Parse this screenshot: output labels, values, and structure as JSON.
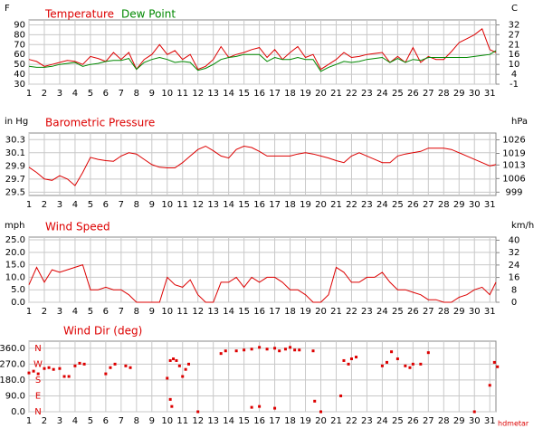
{
  "chart_data": [
    {
      "type": "line",
      "y_label": "F",
      "y2_label": "C",
      "x": [
        1,
        1.5,
        2,
        2.5,
        3,
        3.5,
        4,
        4.5,
        5,
        5.5,
        6,
        6.5,
        7,
        7.5,
        8,
        8.5,
        9,
        9.5,
        10,
        10.5,
        11,
        11.5,
        12,
        12.5,
        13,
        13.5,
        14,
        14.5,
        15,
        15.5,
        16,
        16.5,
        17,
        17.5,
        18,
        18.5,
        19,
        19.5,
        20,
        20.5,
        21,
        21.5,
        22,
        22.5,
        23,
        23.5,
        24,
        24.5,
        25,
        25.5,
        26,
        26.5,
        27,
        27.5,
        28,
        28.5,
        29,
        29.5,
        30,
        30.5,
        31,
        31.4
      ],
      "series": [
        {
          "name": "Temperature",
          "color": "#dd0000",
          "values": [
            55,
            53,
            48,
            50,
            52,
            54,
            53,
            50,
            58,
            56,
            53,
            62,
            55,
            62,
            45,
            55,
            60,
            70,
            60,
            64,
            55,
            60,
            45,
            48,
            55,
            68,
            57,
            60,
            62,
            65,
            67,
            57,
            65,
            55,
            62,
            68,
            57,
            60,
            45,
            50,
            55,
            62,
            57,
            58,
            60,
            61,
            62,
            52,
            58,
            52,
            67,
            52,
            58,
            55,
            55,
            63,
            72,
            76,
            80,
            86,
            65,
            62
          ]
        },
        {
          "name": "Dew Point",
          "color": "#008800",
          "values": [
            48,
            47,
            47,
            48,
            50,
            51,
            52,
            48,
            50,
            51,
            53,
            54,
            54,
            56,
            45,
            52,
            55,
            57,
            55,
            52,
            53,
            52,
            44,
            46,
            50,
            55,
            57,
            58,
            60,
            60,
            60,
            53,
            57,
            55,
            55,
            57,
            55,
            55,
            43,
            47,
            50,
            53,
            52,
            53,
            55,
            56,
            57,
            52,
            56,
            52,
            55,
            54,
            57,
            57,
            57,
            57,
            57,
            57,
            58,
            59,
            60,
            64
          ]
        }
      ],
      "xlim": [
        1,
        31.4
      ],
      "xticks": [
        1,
        2,
        3,
        4,
        5,
        6,
        7,
        8,
        9,
        10,
        11,
        12,
        13,
        14,
        15,
        16,
        17,
        18,
        19,
        20,
        21,
        22,
        23,
        24,
        25,
        26,
        27,
        28,
        29,
        30,
        31
      ],
      "ylim": [
        30,
        95
      ],
      "yticks": [
        30,
        40,
        50,
        60,
        70,
        80,
        90
      ],
      "y2lim": [
        -1.1,
        35
      ],
      "y2ticks": [
        {
          "value": -1.1,
          "label": "-1"
        },
        {
          "value": 4.4,
          "label": "4"
        },
        10,
        {
          "value": 15.6,
          "label": "16"
        },
        {
          "value": 21.1,
          "label": "21"
        },
        {
          "value": 26.7,
          "label": "27"
        },
        {
          "value": 32.2,
          "label": "32"
        }
      ],
      "grid": true
    },
    {
      "type": "line",
      "title": "Barometric Pressure",
      "title_color": "#dd0000",
      "y_label": "in Hg",
      "y2_label": "hPa",
      "x": [
        1,
        1.5,
        2,
        2.5,
        3,
        3.5,
        4,
        4.5,
        5,
        5.5,
        6,
        6.5,
        7,
        7.5,
        8,
        8.5,
        9,
        9.5,
        10,
        10.5,
        11,
        11.5,
        12,
        12.5,
        13,
        13.5,
        14,
        14.5,
        15,
        15.5,
        16,
        16.5,
        17,
        17.5,
        18,
        18.5,
        19,
        19.5,
        20,
        20.5,
        21,
        21.5,
        22,
        22.5,
        23,
        23.5,
        24,
        24.5,
        25,
        25.5,
        26,
        26.5,
        27,
        27.5,
        28,
        28.5,
        29,
        29.5,
        30,
        30.5,
        31,
        31.4
      ],
      "values": [
        29.88,
        29.8,
        29.7,
        29.68,
        29.75,
        29.7,
        29.6,
        29.8,
        30.03,
        30.0,
        29.98,
        29.97,
        30.05,
        30.1,
        30.08,
        30.0,
        29.92,
        29.88,
        29.87,
        29.87,
        29.95,
        30.05,
        30.15,
        30.2,
        30.13,
        30.05,
        30.02,
        30.15,
        30.2,
        30.18,
        30.12,
        30.05,
        30.05,
        30.05,
        30.05,
        30.08,
        30.1,
        30.08,
        30.05,
        30.02,
        29.98,
        29.95,
        30.05,
        30.1,
        30.05,
        30.0,
        29.95,
        29.95,
        30.05,
        30.08,
        30.1,
        30.12,
        30.17,
        30.17,
        30.17,
        30.15,
        30.1,
        30.05,
        30.0,
        29.95,
        29.9,
        29.92
      ],
      "color": "#dd0000",
      "xlim": [
        1,
        31.4
      ],
      "xticks": [
        1,
        2,
        3,
        4,
        5,
        6,
        7,
        8,
        9,
        10,
        11,
        12,
        13,
        14,
        15,
        16,
        17,
        18,
        19,
        20,
        21,
        22,
        23,
        24,
        25,
        26,
        27,
        28,
        29,
        30,
        31
      ],
      "ylim": [
        29.45,
        30.4
      ],
      "yticks": [
        29.5,
        29.7,
        29.9,
        30.1,
        30.3
      ],
      "y2lim": [
        997.3,
        1029.5
      ],
      "y2ticks": [
        999,
        1006,
        1013,
        1019,
        1026
      ],
      "grid": true
    },
    {
      "type": "line",
      "title": "Wind Speed",
      "title_color": "#dd0000",
      "y_label": "mph",
      "y2_label": "km/h",
      "x": [
        1,
        1.5,
        2,
        2.5,
        3,
        3.5,
        4,
        4.5,
        5,
        5.5,
        6,
        6.5,
        7,
        7.5,
        8,
        8.5,
        9,
        9.5,
        10,
        10.5,
        11,
        11.5,
        12,
        12.5,
        13,
        13.5,
        14,
        14.5,
        15,
        15.5,
        16,
        16.5,
        17,
        17.5,
        18,
        18.5,
        19,
        19.5,
        20,
        20.5,
        21,
        21.5,
        22,
        22.5,
        23,
        23.5,
        24,
        24.5,
        25,
        25.5,
        26,
        26.5,
        27,
        27.5,
        28,
        28.5,
        29,
        29.5,
        30,
        30.5,
        31,
        31.4
      ],
      "values": [
        7,
        14,
        8,
        13,
        12,
        13,
        14,
        15,
        5,
        5,
        6,
        5,
        5,
        3,
        0,
        0,
        0,
        0,
        10,
        7,
        6,
        9,
        3,
        0,
        0,
        8,
        8,
        10,
        6,
        10,
        8,
        10,
        10,
        8,
        5,
        5,
        3,
        0,
        0,
        3,
        14,
        12,
        8,
        8,
        10,
        10,
        12,
        8,
        5,
        5,
        4,
        3,
        1,
        1,
        0,
        0,
        2,
        3,
        5,
        6,
        3,
        8
      ],
      "color": "#dd0000",
      "xlim": [
        1,
        31.4
      ],
      "xticks": [
        1,
        2,
        3,
        4,
        5,
        6,
        7,
        8,
        9,
        10,
        11,
        12,
        13,
        14,
        15,
        16,
        17,
        18,
        19,
        20,
        21,
        22,
        23,
        24,
        25,
        26,
        27,
        28,
        29,
        30,
        31
      ],
      "ylim": [
        0,
        26.1
      ],
      "yticks": [
        {
          "value": 0,
          "label": "0.0"
        },
        {
          "value": 5,
          "label": "5.0"
        },
        {
          "value": 10,
          "label": "10.0"
        },
        {
          "value": 15,
          "label": "15.0"
        },
        {
          "value": 20,
          "label": "20.0"
        },
        {
          "value": 25,
          "label": "25.0"
        }
      ],
      "y2lim": [
        0,
        42
      ],
      "y2ticks": [
        0,
        8,
        16,
        24,
        32,
        40
      ],
      "grid": true
    },
    {
      "type": "scatter",
      "title": "Wind Dir (deg)",
      "title_color": "#dd0000",
      "compass_labels": [
        "N",
        "W",
        "S",
        "E",
        "N"
      ],
      "source": "hdmetar",
      "x": [
        1,
        1.3,
        1.6,
        2,
        2.3,
        2.6,
        3,
        3.3,
        3.6,
        4,
        4.3,
        4.6,
        6,
        6.3,
        6.6,
        7.3,
        7.6,
        10,
        10.2,
        10.4,
        10.6,
        10.8,
        10.2,
        10.3,
        11,
        11.2,
        11.4,
        12,
        13.5,
        13.8,
        14.5,
        15,
        15.5,
        16,
        16.5,
        17,
        17.3,
        17.7,
        18,
        18.3,
        18.6,
        19.5,
        19.6,
        16,
        15.5,
        17,
        21.3,
        21.5,
        21.8,
        22,
        22.3,
        24,
        24.3,
        24.6,
        25,
        25.5,
        25.8,
        26,
        26.5,
        27,
        31,
        31.3,
        31.5,
        30,
        20
      ],
      "values": [
        220,
        230,
        215,
        245,
        250,
        240,
        245,
        200,
        200,
        260,
        275,
        270,
        215,
        250,
        270,
        260,
        250,
        190,
        290,
        300,
        290,
        260,
        70,
        30,
        200,
        240,
        270,
        0,
        330,
        345,
        345,
        350,
        355,
        365,
        355,
        360,
        345,
        355,
        365,
        350,
        350,
        345,
        60,
        30,
        25,
        20,
        90,
        290,
        270,
        300,
        310,
        260,
        280,
        340,
        300,
        260,
        250,
        270,
        270,
        335,
        150,
        280,
        255,
        0,
        0
      ],
      "color": "#dd0000",
      "xlim": [
        1,
        31.4
      ],
      "xticks": [
        1,
        2,
        3,
        4,
        5,
        6,
        7,
        8,
        9,
        10,
        11,
        12,
        13,
        14,
        15,
        16,
        17,
        18,
        19,
        20,
        21,
        22,
        23,
        24,
        25,
        26,
        27,
        28,
        29,
        30,
        31
      ],
      "ylim": [
        0,
        400
      ],
      "yticks": [
        {
          "value": 0,
          "label": "0.0"
        },
        {
          "value": 90,
          "label": "90.0"
        },
        {
          "value": 180,
          "label": "180.0"
        },
        {
          "value": 270,
          "label": "270.0"
        },
        {
          "value": 360,
          "label": "360.0"
        }
      ],
      "grid": true
    }
  ]
}
